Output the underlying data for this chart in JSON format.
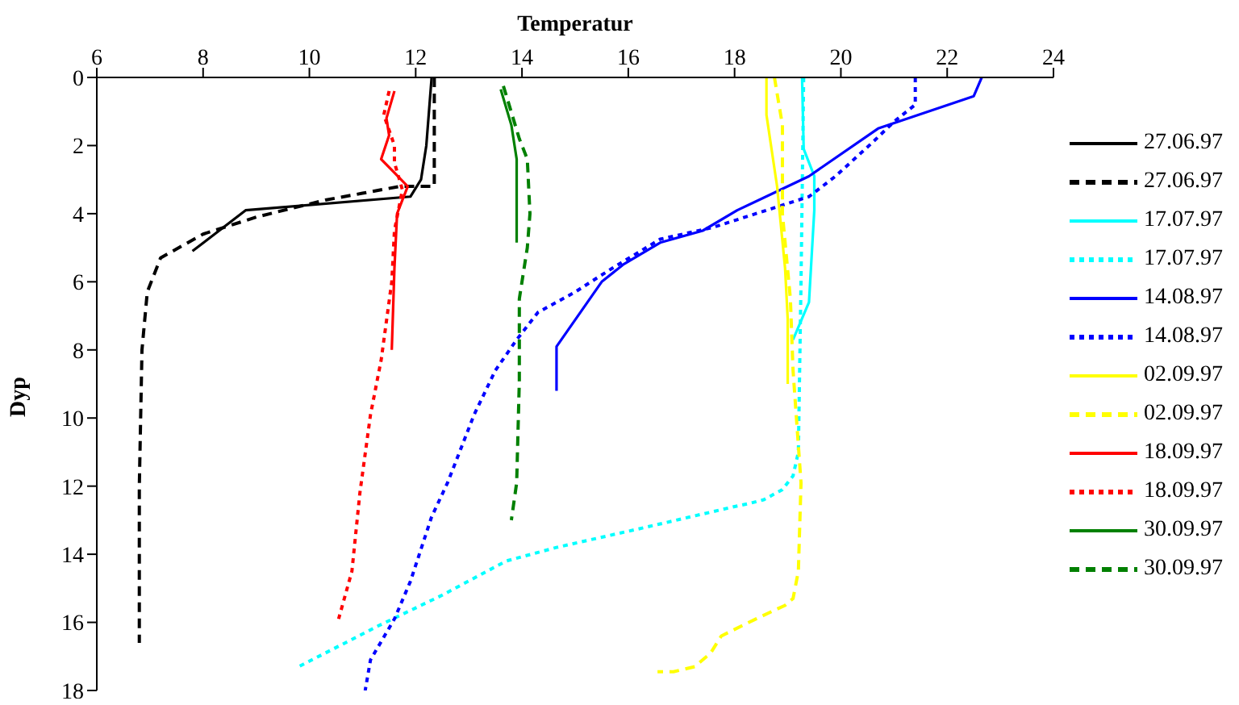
{
  "chart_data": {
    "type": "line",
    "xlabel": "Temperatur",
    "ylabel": "Dyp",
    "xlim": [
      6,
      24
    ],
    "xticks": [
      6,
      8,
      10,
      12,
      14,
      16,
      18,
      20,
      22,
      24
    ],
    "ylim": [
      18,
      0
    ],
    "yticks": [
      0,
      2,
      4,
      6,
      8,
      10,
      12,
      14,
      16,
      18
    ],
    "grid": false,
    "legend": "right",
    "marker": "none",
    "series": [
      {
        "name": "27.06.97",
        "color": "#000000",
        "line_style": "solid",
        "x": [
          12.3,
          12.2,
          12.1,
          11.9,
          8.8,
          7.8
        ],
        "values": [
          0,
          2,
          3,
          3.5,
          3.9,
          5.1
        ]
      },
      {
        "name": "27.06.97",
        "color": "#000000",
        "line_style": "dashed",
        "x": [
          12.35,
          12.35,
          11.7,
          11,
          10.3,
          9,
          8,
          7.2,
          6.95,
          6.85,
          6.8,
          6.8
        ],
        "values": [
          0,
          3.2,
          3.2,
          3.4,
          3.6,
          4.1,
          4.6,
          5.3,
          6.3,
          8,
          12,
          16.6
        ]
      },
      {
        "name": "17.07.97",
        "color": "#00ffff",
        "line_style": "solid",
        "x": [
          19.27,
          19.3,
          19.5,
          19.5,
          19.4,
          19.1
        ],
        "values": [
          0,
          2.1,
          2.9,
          3.9,
          6.6,
          7.7
        ]
      },
      {
        "name": "17.07.97",
        "color": "#00ffff",
        "line_style": "dotted",
        "x": [
          19.3,
          19.25,
          19.2,
          19.2,
          19.1,
          18.9,
          18.55,
          18.3,
          18,
          16.35,
          14.65,
          13.7,
          12.5,
          11.3,
          9.8
        ],
        "values": [
          0,
          6,
          11,
          11,
          11.7,
          12.1,
          12.4,
          12.5,
          12.6,
          13.2,
          13.8,
          14.2,
          15.2,
          16.1,
          17.3
        ]
      },
      {
        "name": "14.08.97",
        "color": "#0000ff",
        "line_style": "solid",
        "x": [
          22.65,
          22.5,
          20.7,
          19.4,
          18.05,
          17.4,
          16.6,
          15.9,
          15.5,
          14.65,
          14.65
        ],
        "values": [
          0,
          0.55,
          1.5,
          2.9,
          3.9,
          4.5,
          4.85,
          5.5,
          6,
          7.9,
          9.2
        ]
      },
      {
        "name": "14.08.97",
        "color": "#0000ff",
        "line_style": "dotted",
        "x": [
          21.4,
          21.4,
          21,
          20.6,
          19.9,
          19.4,
          18.7,
          17.6,
          16.6,
          15.7,
          15,
          14.3,
          13.9,
          13.5,
          13.1,
          12.6,
          12.3,
          11.9,
          11.6,
          11.15,
          11.05
        ],
        "values": [
          0,
          0.8,
          1.3,
          1.9,
          2.9,
          3.5,
          3.85,
          4.4,
          4.75,
          5.6,
          6.3,
          6.9,
          7.7,
          8.6,
          9.9,
          11.9,
          12.9,
          14.8,
          15.9,
          17.1,
          18
        ]
      },
      {
        "name": "02.09.97",
        "color": "#ffff00",
        "line_style": "solid",
        "x": [
          18.6,
          18.6,
          18.8,
          18.95,
          19,
          19
        ],
        "values": [
          0,
          1.1,
          3.2,
          5.6,
          7.1,
          9
        ]
      },
      {
        "name": "02.09.97",
        "color": "#ffff00",
        "line_style": "dashed",
        "x": [
          18.75,
          18.9,
          18.9,
          19.05,
          19.1,
          19.25,
          19.2,
          19.1,
          18.95,
          18.4,
          17.75,
          17.55,
          17.25,
          16.85,
          16.55
        ],
        "values": [
          0,
          1.4,
          4,
          6.5,
          8.6,
          11.9,
          14.5,
          15.3,
          15.5,
          15.9,
          16.4,
          16.9,
          17.3,
          17.45,
          17.45
        ]
      },
      {
        "name": "18.09.97",
        "color": "#ff0000",
        "line_style": "solid",
        "x": [
          11.6,
          11.45,
          11.5,
          11.35,
          11.6,
          11.85,
          11.65,
          11.6,
          11.55
        ],
        "values": [
          0.4,
          1.2,
          1.7,
          2.4,
          2.8,
          3.2,
          4,
          5.6,
          8
        ]
      },
      {
        "name": "18.09.97",
        "color": "#ff0000",
        "line_style": "dotted",
        "x": [
          11.5,
          11.4,
          11.6,
          11.6,
          11.75,
          11.6,
          11.55,
          11.35,
          11.15,
          10.95,
          10.8,
          10.55
        ],
        "values": [
          0.4,
          1.1,
          2,
          2.5,
          3.3,
          4.5,
          6,
          8.3,
          9.9,
          12.2,
          14.5,
          15.9
        ]
      },
      {
        "name": "30.09.97",
        "color": "#008000",
        "line_style": "solid",
        "x": [
          13.6,
          13.8,
          13.9,
          13.9
        ],
        "values": [
          0.35,
          1.4,
          2.4,
          4.85
        ]
      },
      {
        "name": "30.09.97",
        "color": "#008000",
        "line_style": "dashed",
        "x": [
          13.65,
          13.95,
          14.1,
          14.15,
          14.1,
          13.95,
          13.95,
          13.9,
          13.8
        ],
        "values": [
          0.25,
          1.8,
          2.4,
          4,
          5,
          6.5,
          8.9,
          11.9,
          13
        ]
      }
    ]
  }
}
